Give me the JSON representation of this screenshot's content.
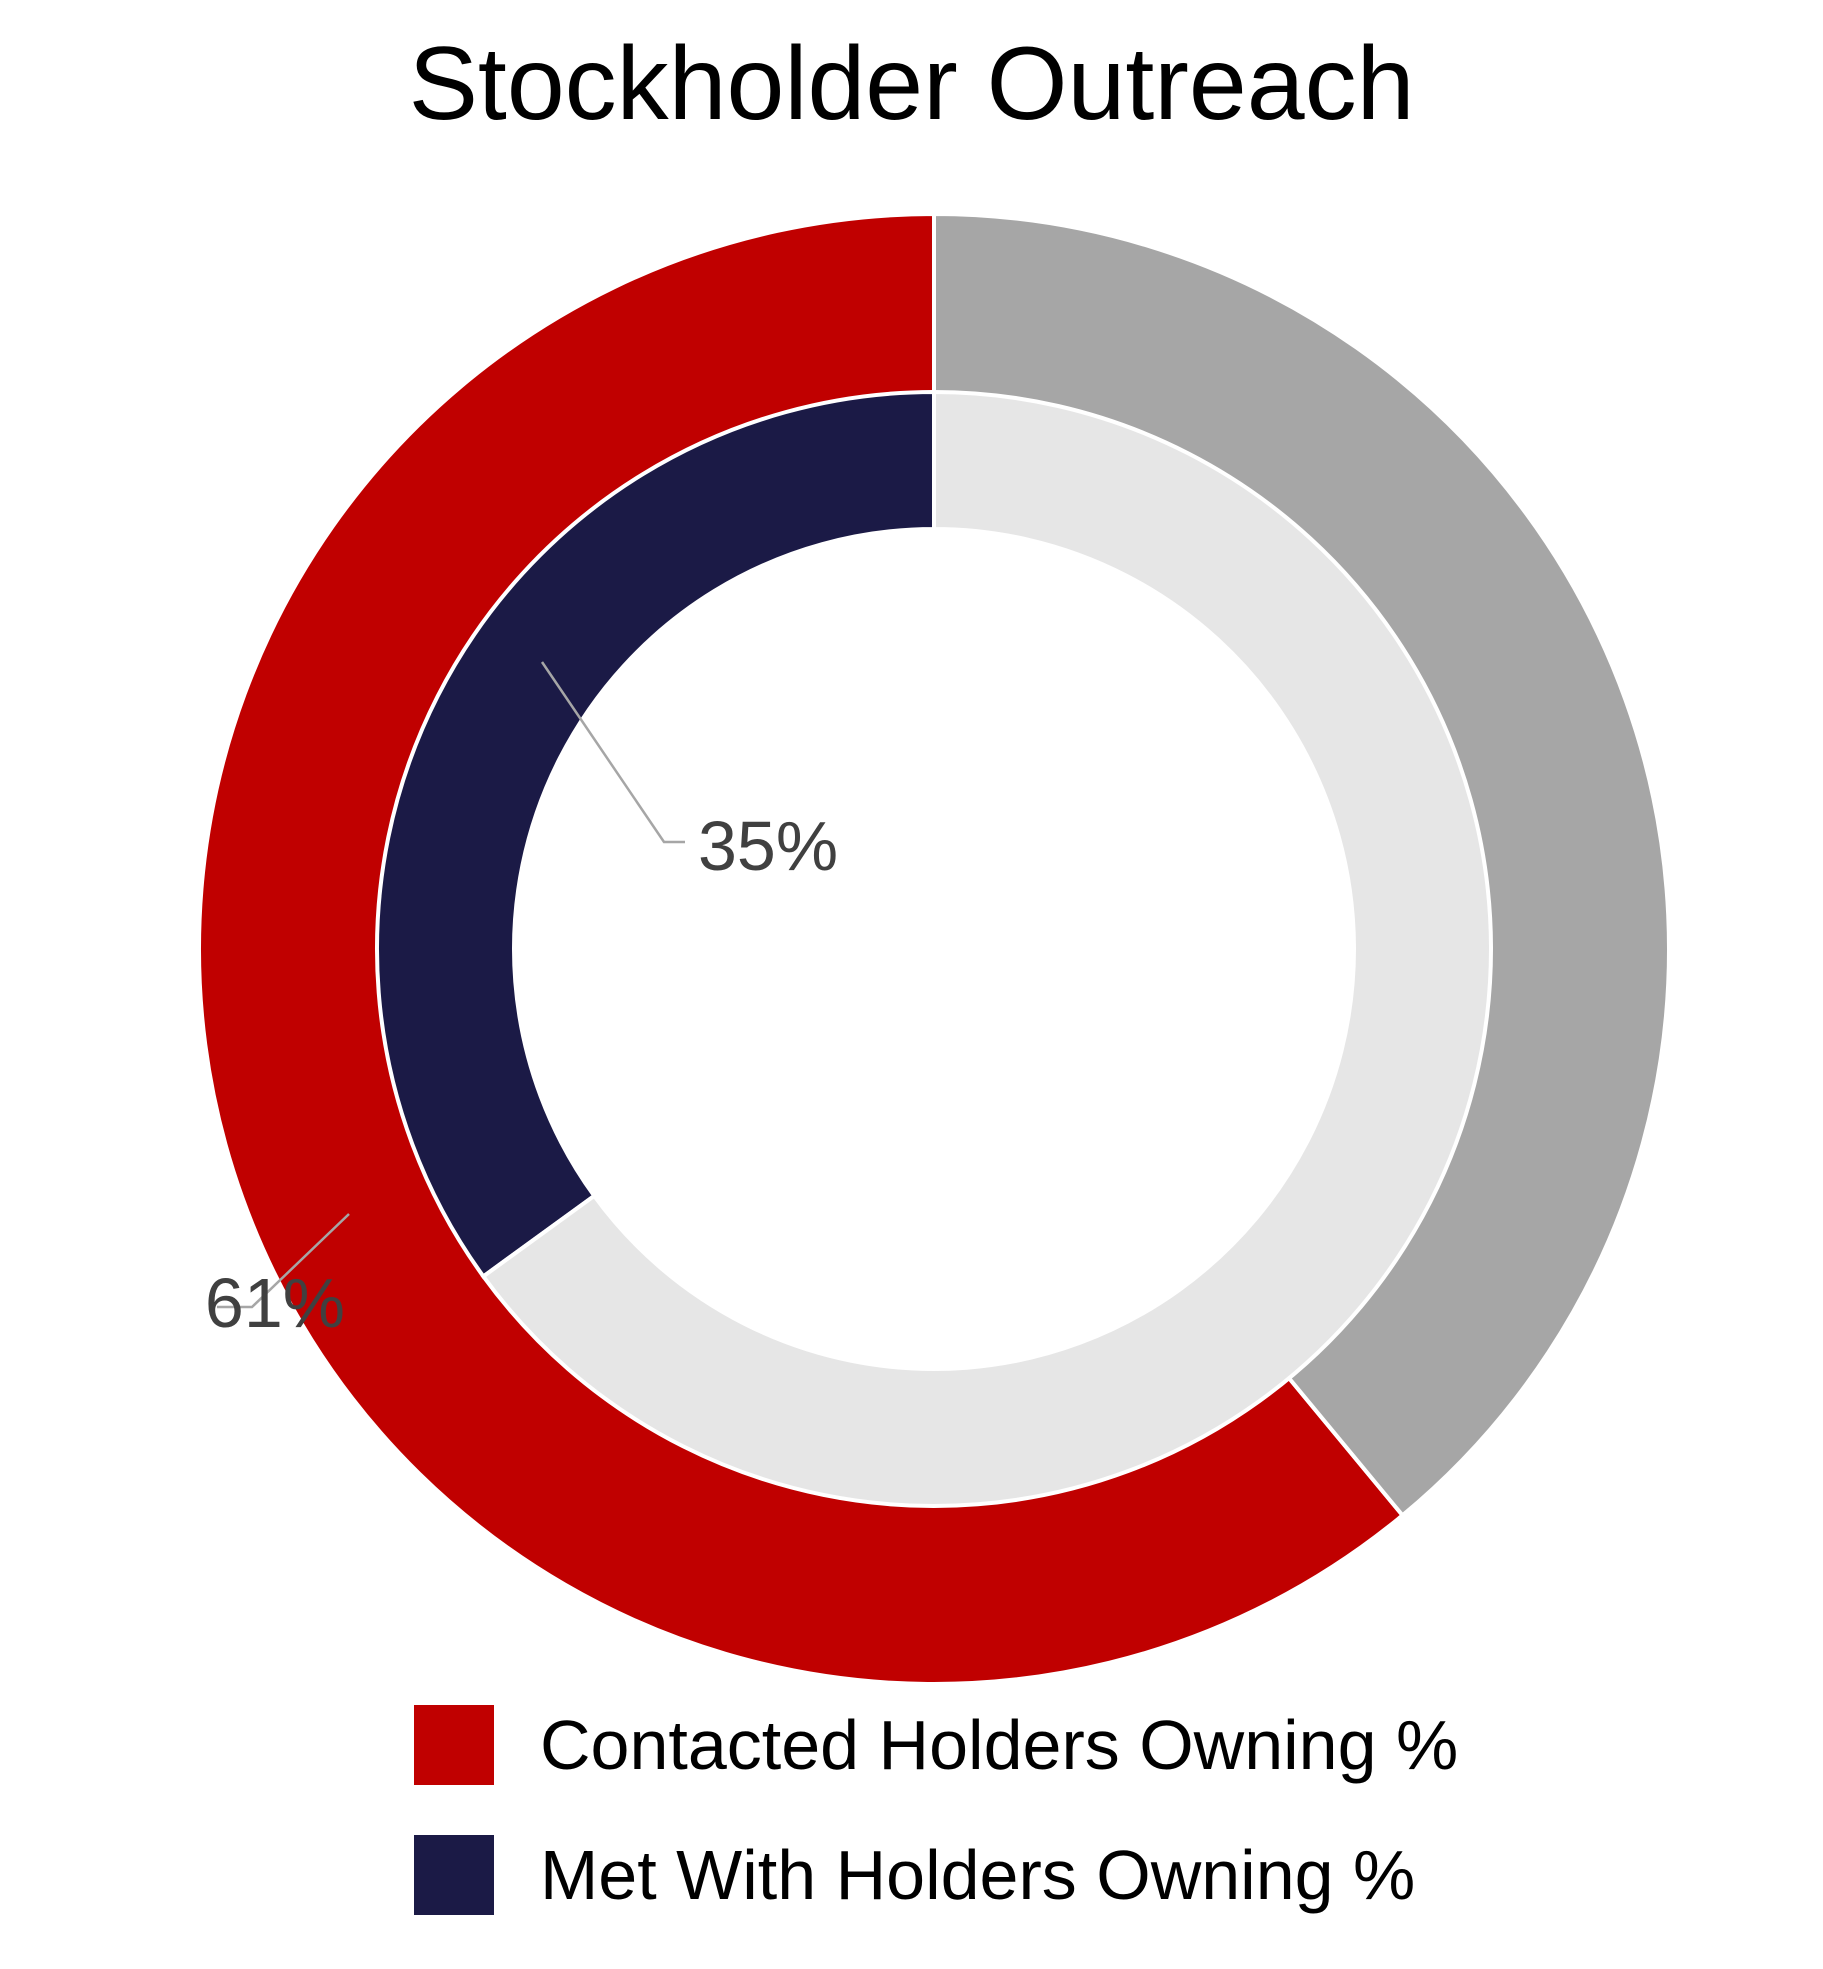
{
  "chart_data": {
    "type": "donut",
    "title": "Stockholder Outreach",
    "rings": [
      {
        "name": "Contacted Holders Owning %",
        "ring": "outer",
        "value": 61,
        "remainder": 39,
        "label": "61%",
        "color": "#c00000",
        "remainder_color": "#a6a6a6"
      },
      {
        "name": "Met With Holders Owning %",
        "ring": "inner",
        "value": 35,
        "remainder": 65,
        "label": "35%",
        "color": "#1b1a46",
        "remainder_color": "#e6e6e6"
      }
    ],
    "legend_position": "bottom"
  }
}
